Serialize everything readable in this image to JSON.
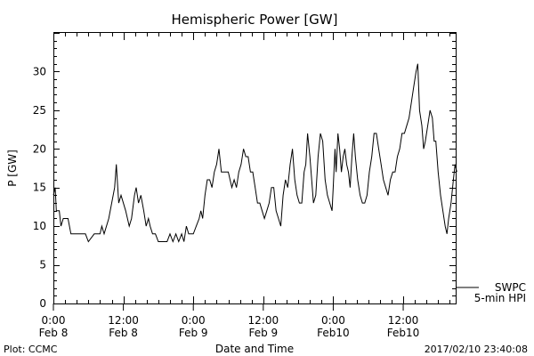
{
  "chart_data": {
    "type": "line",
    "title": "Hemispheric Power [GW]",
    "xlabel": "Date and Time",
    "ylabel": "P [GW]",
    "ylim": [
      0,
      35
    ],
    "xlim": [
      0,
      69
    ],
    "y_ticks": [
      0,
      5,
      10,
      15,
      20,
      25,
      30
    ],
    "x_ticks": [
      {
        "hour": 0,
        "time": "0:00",
        "date": "Feb 8"
      },
      {
        "hour": 12,
        "time": "12:00",
        "date": "Feb 8"
      },
      {
        "hour": 24,
        "time": "0:00",
        "date": "Feb 9"
      },
      {
        "hour": 36,
        "time": "12:00",
        "date": "Feb 9"
      },
      {
        "hour": 48,
        "time": "0:00",
        "date": "Feb10"
      },
      {
        "hour": 60,
        "time": "12:00",
        "date": "Feb10"
      }
    ],
    "grid": false,
    "legend": [
      {
        "label": "SWPC",
        "line": true
      },
      {
        "label": "5-min HPI",
        "line": false
      }
    ],
    "series": [
      {
        "name": "SWPC",
        "color": "#000000",
        "points": [
          [
            0,
            14
          ],
          [
            0.3,
            15
          ],
          [
            0.5,
            12
          ],
          [
            1,
            12
          ],
          [
            1.3,
            10
          ],
          [
            1.7,
            11
          ],
          [
            2.5,
            11
          ],
          [
            3,
            9
          ],
          [
            5.5,
            9
          ],
          [
            6,
            8
          ],
          [
            7,
            9
          ],
          [
            8,
            9
          ],
          [
            8.3,
            10
          ],
          [
            8.7,
            9
          ],
          [
            9.5,
            11
          ],
          [
            10,
            13
          ],
          [
            10.5,
            15
          ],
          [
            10.8,
            18
          ],
          [
            11.2,
            13
          ],
          [
            11.6,
            14
          ],
          [
            12.4,
            12
          ],
          [
            13,
            10
          ],
          [
            13.4,
            11
          ],
          [
            13.9,
            14
          ],
          [
            14.2,
            15
          ],
          [
            14.6,
            13
          ],
          [
            15,
            14
          ],
          [
            15.5,
            12
          ],
          [
            15.9,
            10
          ],
          [
            16.3,
            11
          ],
          [
            16.6,
            10
          ],
          [
            17,
            9
          ],
          [
            17.5,
            9
          ],
          [
            18,
            8
          ],
          [
            19.5,
            8
          ],
          [
            20,
            9
          ],
          [
            20.5,
            8
          ],
          [
            21,
            9
          ],
          [
            21.5,
            8
          ],
          [
            22,
            9
          ],
          [
            22.4,
            8
          ],
          [
            22.8,
            10
          ],
          [
            23.2,
            9
          ],
          [
            24,
            9
          ],
          [
            24.5,
            10
          ],
          [
            25,
            11
          ],
          [
            25.3,
            12
          ],
          [
            25.6,
            11
          ],
          [
            26,
            14
          ],
          [
            26.4,
            16
          ],
          [
            26.8,
            16
          ],
          [
            27.2,
            15
          ],
          [
            27.6,
            17
          ],
          [
            28,
            18
          ],
          [
            28.4,
            20
          ],
          [
            28.8,
            17
          ],
          [
            30,
            17
          ],
          [
            30.3,
            16
          ],
          [
            30.6,
            15
          ],
          [
            31,
            16
          ],
          [
            31.4,
            15
          ],
          [
            31.8,
            17
          ],
          [
            32.2,
            18
          ],
          [
            32.6,
            20
          ],
          [
            33,
            19
          ],
          [
            33.4,
            19
          ],
          [
            33.8,
            17
          ],
          [
            34.2,
            17
          ],
          [
            34.6,
            15
          ],
          [
            35,
            13
          ],
          [
            35.4,
            13
          ],
          [
            35.8,
            12
          ],
          [
            36.2,
            11
          ],
          [
            36.6,
            12
          ],
          [
            37,
            13
          ],
          [
            37.4,
            15
          ],
          [
            37.8,
            15
          ],
          [
            38.2,
            12
          ],
          [
            38.6,
            11
          ],
          [
            39,
            10
          ],
          [
            39.4,
            14
          ],
          [
            39.8,
            16
          ],
          [
            40.2,
            15
          ],
          [
            40.6,
            18
          ],
          [
            41,
            20
          ],
          [
            41.4,
            16
          ],
          [
            41.8,
            14
          ],
          [
            42.2,
            13
          ],
          [
            42.6,
            13
          ],
          [
            43,
            17
          ],
          [
            43.3,
            18
          ],
          [
            43.6,
            22
          ],
          [
            44,
            19
          ],
          [
            44.3,
            16
          ],
          [
            44.6,
            13
          ],
          [
            45,
            14
          ],
          [
            45.4,
            19
          ],
          [
            45.8,
            22
          ],
          [
            46.2,
            21
          ],
          [
            46.6,
            16
          ],
          [
            47,
            14
          ],
          [
            47.4,
            13
          ],
          [
            47.8,
            12
          ],
          [
            48,
            15
          ],
          [
            48.3,
            20
          ],
          [
            48.5,
            17
          ],
          [
            48.8,
            22
          ],
          [
            49.1,
            20
          ],
          [
            49.4,
            17
          ],
          [
            49.7,
            19
          ],
          [
            50,
            20
          ],
          [
            50.3,
            18
          ],
          [
            50.6,
            17
          ],
          [
            50.9,
            15
          ],
          [
            51.2,
            19
          ],
          [
            51.5,
            22
          ],
          [
            51.8,
            19
          ],
          [
            52.2,
            16
          ],
          [
            52.6,
            14
          ],
          [
            53,
            13
          ],
          [
            53.4,
            13
          ],
          [
            53.8,
            14
          ],
          [
            54.2,
            17
          ],
          [
            54.6,
            19
          ],
          [
            55,
            22
          ],
          [
            55.4,
            22
          ],
          [
            55.8,
            20
          ],
          [
            56.2,
            18
          ],
          [
            56.6,
            16
          ],
          [
            57,
            15
          ],
          [
            57.4,
            14
          ],
          [
            57.8,
            16
          ],
          [
            58.2,
            17
          ],
          [
            58.6,
            17
          ],
          [
            59,
            19
          ],
          [
            59.4,
            20
          ],
          [
            59.8,
            22
          ],
          [
            60.2,
            22
          ],
          [
            60.6,
            23
          ],
          [
            61,
            24
          ],
          [
            61.4,
            26
          ],
          [
            61.8,
            28
          ],
          [
            62.2,
            30
          ],
          [
            62.5,
            31
          ],
          [
            62.8,
            25
          ],
          [
            63.2,
            23
          ],
          [
            63.5,
            20
          ],
          [
            63.8,
            21
          ],
          [
            64.2,
            23
          ],
          [
            64.6,
            25
          ],
          [
            65,
            24
          ],
          [
            65.3,
            21
          ],
          [
            65.6,
            21
          ],
          [
            66,
            17
          ],
          [
            66.4,
            14
          ],
          [
            66.8,
            12
          ],
          [
            67.2,
            10
          ],
          [
            67.5,
            9
          ],
          [
            67.8,
            11
          ],
          [
            68.2,
            13
          ],
          [
            68.6,
            16
          ],
          [
            68.9,
            18
          ],
          [
            69.2,
            17
          ]
        ]
      }
    ]
  },
  "footer": {
    "left": "Plot: CCMC",
    "right": "2017/02/10 23:40:08"
  }
}
